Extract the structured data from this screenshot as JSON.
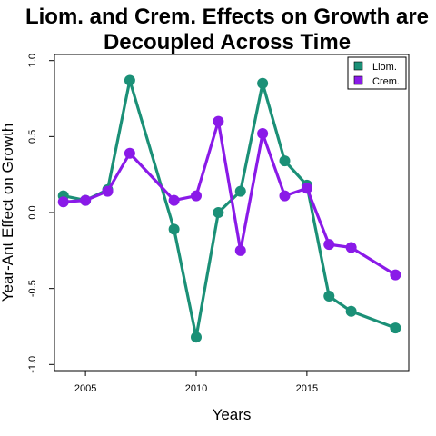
{
  "chart_data": {
    "type": "line",
    "title_line1": "Liom. and Crem. Effects on Growth are",
    "title_line2": "Decoupled Across Time",
    "xlabel": "Years",
    "ylabel": "Year-Ant Effect on Growth",
    "xlim": [
      2003.6,
      2019.6
    ],
    "ylim": [
      -1.04,
      1.04
    ],
    "x_ticks": [
      2005,
      2010,
      2015
    ],
    "x_tick_labels": [
      "2005",
      "2010",
      "2015"
    ],
    "y_ticks": [
      -1.0,
      -0.5,
      0.0,
      0.5,
      1.0
    ],
    "y_tick_labels": [
      "-1.0",
      "-0.5",
      "0.0",
      "0.5",
      "1.0"
    ],
    "grid": false,
    "legend_position": "top-right",
    "x": [
      2004,
      2005,
      2006,
      2007,
      2009,
      2010,
      2011,
      2012,
      2013,
      2014,
      2015,
      2016,
      2017,
      2019
    ],
    "series": [
      {
        "name": "Liom.",
        "color": "#1b9077",
        "values": [
          0.11,
          0.08,
          0.15,
          0.87,
          -0.11,
          -0.82,
          0.0,
          0.14,
          0.85,
          0.34,
          0.18,
          -0.55,
          -0.65,
          -0.76
        ]
      },
      {
        "name": "Crem.",
        "color": "#8a1ae8",
        "values": [
          0.07,
          0.08,
          0.14,
          0.39,
          0.08,
          0.11,
          0.6,
          -0.25,
          0.52,
          0.11,
          0.16,
          -0.21,
          -0.23,
          -0.41
        ]
      }
    ]
  }
}
